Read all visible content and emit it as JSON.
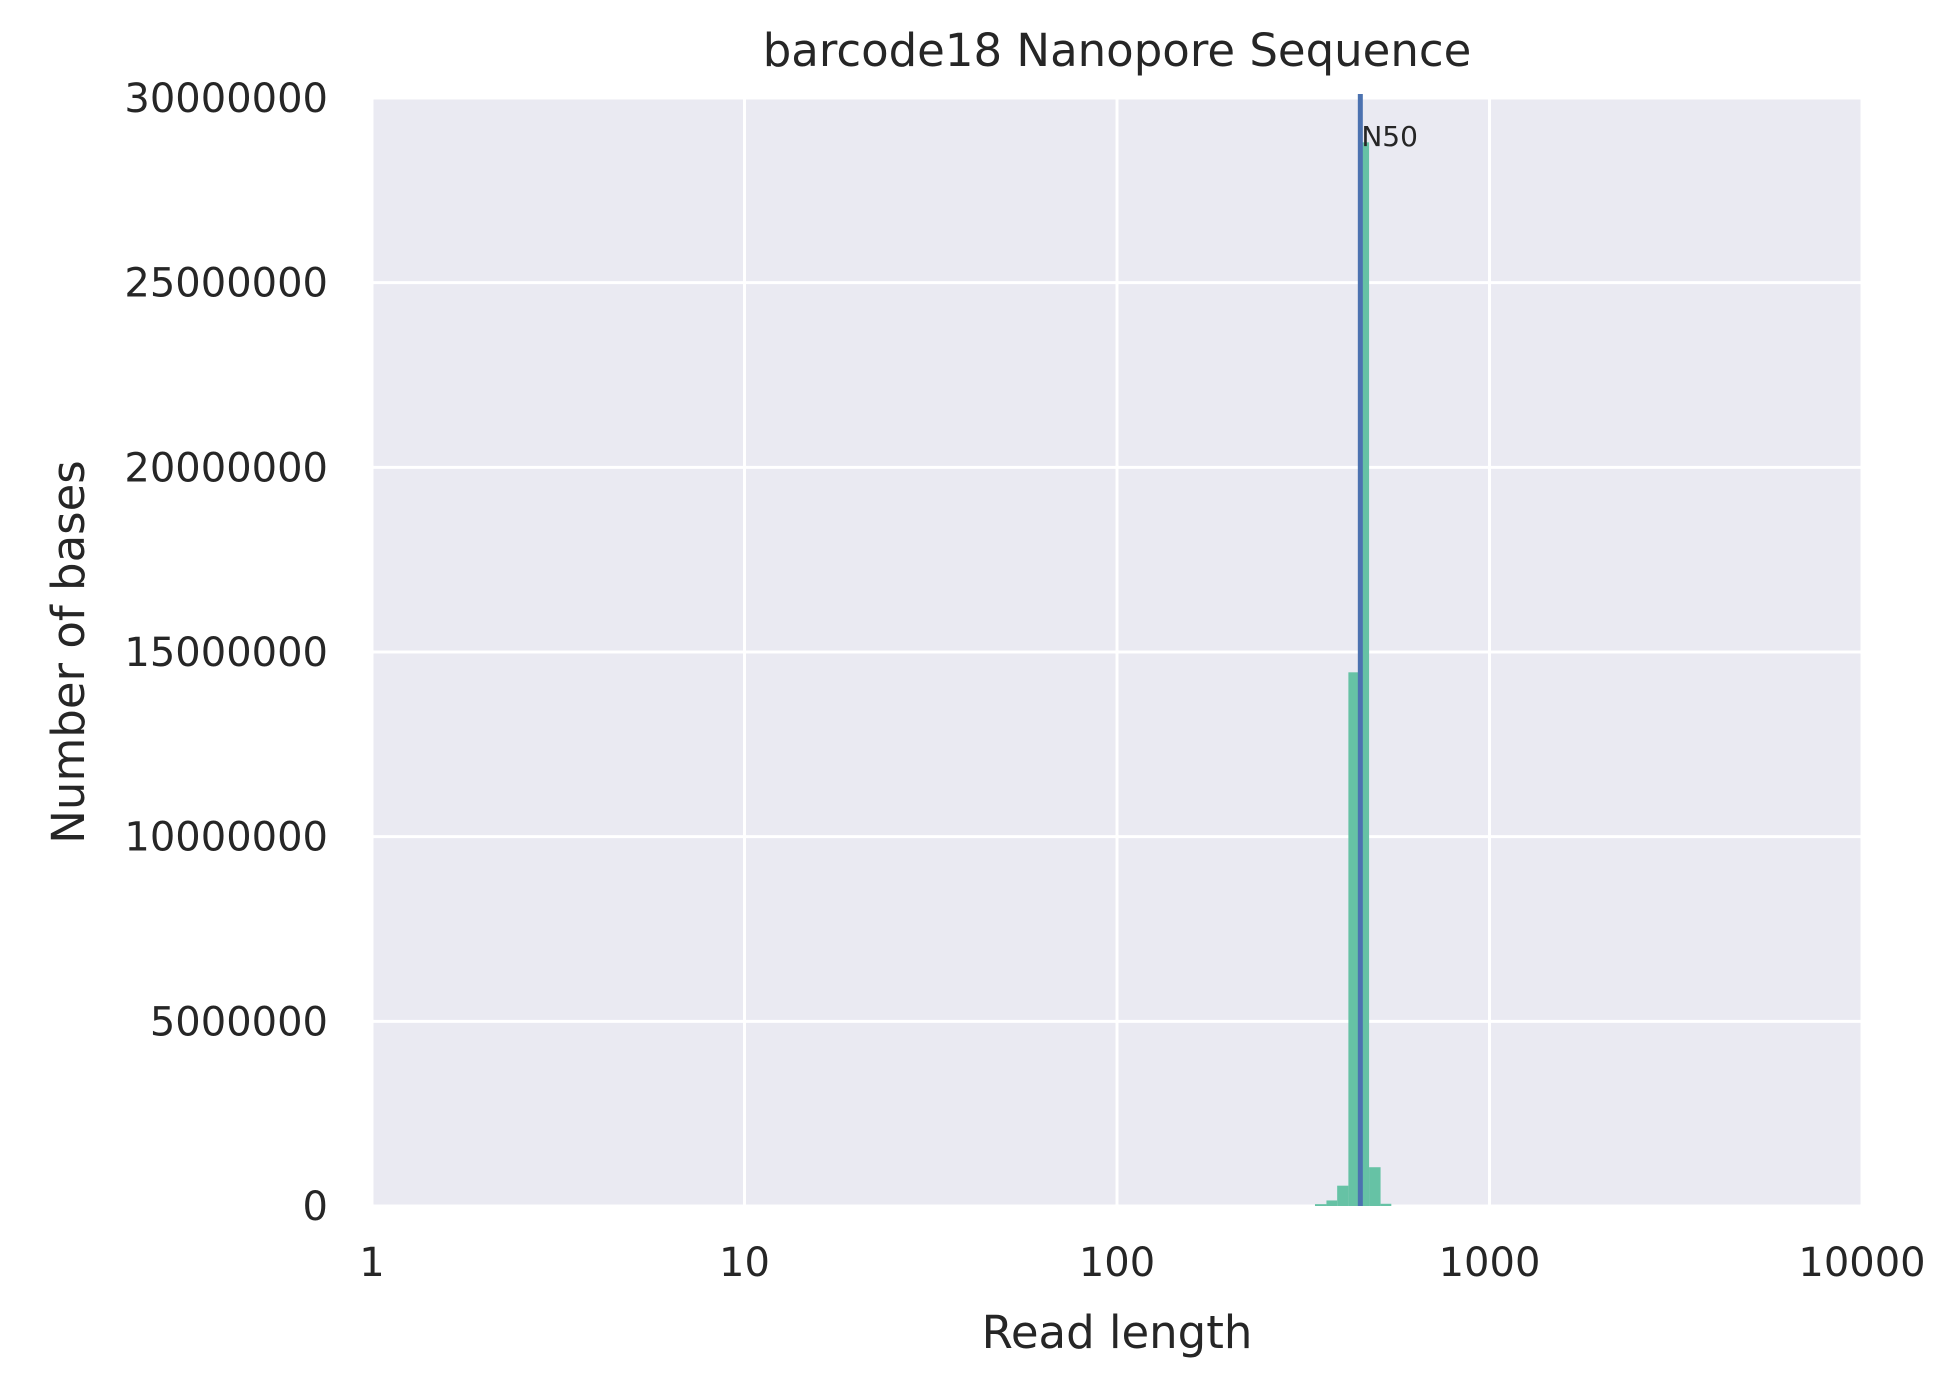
{
  "chart_data": {
    "type": "histogram",
    "title": "barcode18 Nanopore Sequence",
    "xlabel": "Read length",
    "ylabel": "Number of bases",
    "x_scale": "log",
    "xlim": [
      1,
      10000
    ],
    "ylim": [
      0,
      30000000
    ],
    "x_ticks": [
      "1",
      "10",
      "100",
      "1000",
      "10000"
    ],
    "y_ticks": [
      "0",
      "5000000",
      "10000000",
      "15000000",
      "20000000",
      "25000000",
      "30000000"
    ],
    "grid": true,
    "bars": [
      {
        "x0": 340,
        "x1": 365,
        "value": 50000
      },
      {
        "x0": 365,
        "x1": 390,
        "value": 150000
      },
      {
        "x0": 390,
        "x1": 418,
        "value": 550000
      },
      {
        "x0": 418,
        "x1": 445,
        "value": 14450000
      },
      {
        "x0": 445,
        "x1": 475,
        "value": 28800000
      },
      {
        "x0": 475,
        "x1": 510,
        "value": 1050000
      },
      {
        "x0": 510,
        "x1": 545,
        "value": 60000
      }
    ],
    "bar_color": "#66c2a5",
    "n50": {
      "label": "N50",
      "value": 450,
      "color": "#4c72b0"
    },
    "background_color": "#eaeaf2"
  }
}
